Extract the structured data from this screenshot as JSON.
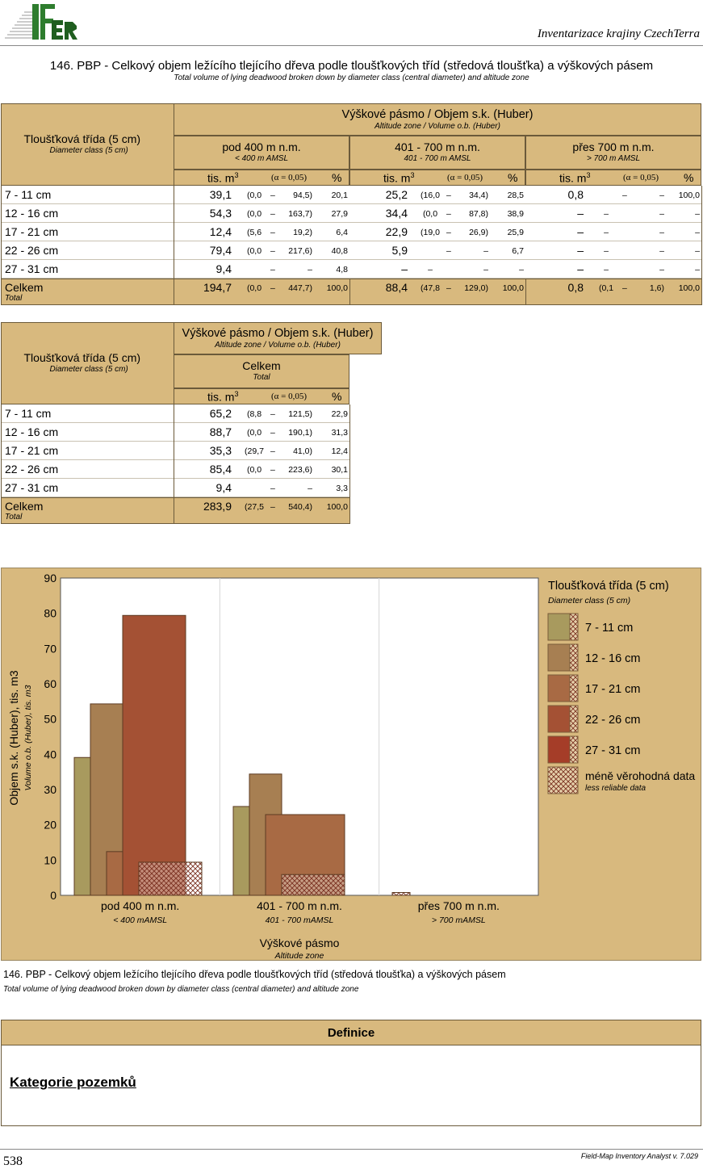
{
  "header": {
    "logo_text": "IFER",
    "title": "Inventarizace krajiny CzechTerra",
    "main_title": "146. PBP - Celkový objem ležícího tlejícího dřeva podle tloušťkových tříd (středová tloušťka) a výškových pásem",
    "sub_title": "Total volume of lying deadwood broken down by diameter class (central diameter) and altitude zone"
  },
  "table1": {
    "class_header": "Tloušťková třída (5 cm)",
    "class_header_en": "Diameter class (5 cm)",
    "zone_header": "Výškové pásmo / Objem s.k. (Huber)",
    "zone_header_en": "Altitude zone / Volume o.b. (Huber)",
    "groups": [
      {
        "label": "pod 400 m n.m.",
        "label_en": "< 400 m AMSL"
      },
      {
        "label": "401 - 700 m n.m.",
        "label_en": "401 - 700 m AMSL"
      },
      {
        "label": "přes 700 m n.m.",
        "label_en": "> 700 m AMSL"
      }
    ],
    "unit": "tis. m",
    "unit_sup": "3",
    "alpha": "(α = 0,05)",
    "pct": "%",
    "rows": [
      {
        "label": "7 - 11 cm",
        "label_en": "",
        "cols": [
          [
            "39,1",
            "(0,0",
            "–",
            "94,5)",
            "20,1"
          ],
          [
            "25,2",
            "(16,0",
            "–",
            "34,4)",
            "28,5"
          ],
          [
            "0,8",
            "",
            "–",
            "–",
            "100,0"
          ]
        ]
      },
      {
        "label": "12 - 16 cm",
        "label_en": "",
        "cols": [
          [
            "54,3",
            "(0,0",
            "–",
            "163,7)",
            "27,9"
          ],
          [
            "34,4",
            "(0,0",
            "–",
            "87,8)",
            "38,9"
          ],
          [
            "–",
            "–",
            "",
            "–",
            "–"
          ]
        ]
      },
      {
        "label": "17 - 21 cm",
        "label_en": "",
        "cols": [
          [
            "12,4",
            "(5,6",
            "–",
            "19,2)",
            "6,4"
          ],
          [
            "22,9",
            "(19,0",
            "–",
            "26,9)",
            "25,9"
          ],
          [
            "–",
            "–",
            "",
            "–",
            "–"
          ]
        ]
      },
      {
        "label": "22 - 26 cm",
        "label_en": "",
        "cols": [
          [
            "79,4",
            "(0,0",
            "–",
            "217,6)",
            "40,8"
          ],
          [
            "5,9",
            "",
            "–",
            "–",
            "6,7"
          ],
          [
            "–",
            "–",
            "",
            "–",
            "–"
          ]
        ]
      },
      {
        "label": "27 - 31 cm",
        "label_en": "",
        "cols": [
          [
            "9,4",
            "",
            "–",
            "–",
            "4,8"
          ],
          [
            "–",
            "–",
            "",
            "–",
            "–"
          ],
          [
            "–",
            "–",
            "",
            "–",
            "–"
          ]
        ]
      },
      {
        "label": "Celkem",
        "label_en": "Total",
        "cols": [
          [
            "194,7",
            "(0,0",
            "–",
            "447,7)",
            "100,0"
          ],
          [
            "88,4",
            "(47,8",
            "–",
            "129,0)",
            "100,0"
          ],
          [
            "0,8",
            "(0,1",
            "–",
            "1,6)",
            "100,0"
          ]
        ]
      }
    ]
  },
  "table2": {
    "class_header": "Tloušťková třída (5 cm)",
    "class_header_en": "Diameter class (5 cm)",
    "zone_header": "Výškové pásmo / Objem s.k. (Huber)",
    "zone_header_en": "Altitude zone / Volume o.b. (Huber)",
    "group": {
      "label": "Celkem",
      "label_en": "Total"
    },
    "unit": "tis. m",
    "unit_sup": "3",
    "alpha": "(α = 0,05)",
    "pct": "%",
    "rows": [
      {
        "label": "7 - 11 cm",
        "label_en": "",
        "cols": [
          [
            "65,2",
            "(8,8",
            "–",
            "121,5)",
            "22,9"
          ]
        ]
      },
      {
        "label": "12 - 16 cm",
        "label_en": "",
        "cols": [
          [
            "88,7",
            "(0,0",
            "–",
            "190,1)",
            "31,3"
          ]
        ]
      },
      {
        "label": "17 - 21 cm",
        "label_en": "",
        "cols": [
          [
            "35,3",
            "(29,7",
            "–",
            "41,0)",
            "12,4"
          ]
        ]
      },
      {
        "label": "22 - 26 cm",
        "label_en": "",
        "cols": [
          [
            "85,4",
            "(0,0",
            "–",
            "223,6)",
            "30,1"
          ]
        ]
      },
      {
        "label": "27 - 31 cm",
        "label_en": "",
        "cols": [
          [
            "9,4",
            "",
            "–",
            "–",
            "3,3"
          ]
        ]
      },
      {
        "label": "Celkem",
        "label_en": "Total",
        "cols": [
          [
            "283,9",
            "(27,5",
            "–",
            "540,4)",
            "100,0"
          ]
        ]
      }
    ]
  },
  "chart_data": {
    "type": "bar",
    "title": "",
    "ylabel": "Objem s.k. (Huber), tis. m3",
    "ylabel_en": "Volume o.b. (Huber), tis. m3",
    "xlabel": "Výškové pásmo",
    "xlabel_en": "Altitude zone",
    "ylim": [
      0,
      90
    ],
    "yticks": [
      "0",
      "10",
      "20",
      "30",
      "40",
      "50",
      "60",
      "70",
      "80",
      "90"
    ],
    "categories": [
      "pod 400 m n.m.",
      "401 - 700 m n.m.",
      "přes 700 m n.m."
    ],
    "categories_en": [
      "< 400 mAMSL",
      "401 - 700 mAMSL",
      "> 700 mAMSL"
    ],
    "series": [
      {
        "name": "7 - 11 cm",
        "values": [
          39.1,
          25.2,
          0.8
        ],
        "reliable": [
          true,
          true,
          false
        ],
        "color": "#a89a5e"
      },
      {
        "name": "12 - 16 cm",
        "values": [
          54.3,
          34.4,
          0
        ],
        "reliable": [
          true,
          true,
          true
        ],
        "color": "#a77f52"
      },
      {
        "name": "17 - 21 cm",
        "values": [
          12.4,
          22.9,
          0
        ],
        "reliable": [
          true,
          true,
          true
        ],
        "color": "#a86a44"
      },
      {
        "name": "22 - 26 cm",
        "values": [
          79.4,
          5.9,
          0
        ],
        "reliable": [
          true,
          false,
          true
        ],
        "color": "#a45134"
      },
      {
        "name": "27 - 31 cm",
        "values": [
          9.4,
          0,
          0
        ],
        "reliable": [
          false,
          true,
          true
        ],
        "color": "#a53d28"
      }
    ],
    "legend_title": "Tloušťková třída (5 cm)",
    "legend_title_en": "Diameter class (5 cm)",
    "legend_unreliable": "méně věrohodná data",
    "legend_unreliable_en": "less reliable data"
  },
  "caption": {
    "title": "146. PBP - Celkový objem ležícího tlejícího dřeva podle tloušťkových tříd (středová tloušťka) a výškových pásem",
    "sub": "Total volume of lying deadwood broken down by diameter class (central diameter) and altitude zone"
  },
  "definitions": {
    "header": "Definice",
    "category": "Kategorie pozemků"
  },
  "footer": {
    "page": "538",
    "software": "Field-Map Inventory Analyst v. 7.029"
  }
}
